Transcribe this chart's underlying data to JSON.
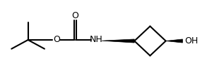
{
  "bg_color": "#ffffff",
  "line_color": "#000000",
  "line_width": 1.5,
  "text_color": "#000000",
  "wedge_color": "#000000",
  "label_NH": "NH",
  "label_O_carbonyl": "O",
  "label_O_ester": "O",
  "label_OH": "OH",
  "fig_width": 3.17,
  "fig_height": 1.2,
  "dpi": 100,
  "xlim": [
    0,
    10
  ],
  "ylim": [
    0,
    4
  ]
}
